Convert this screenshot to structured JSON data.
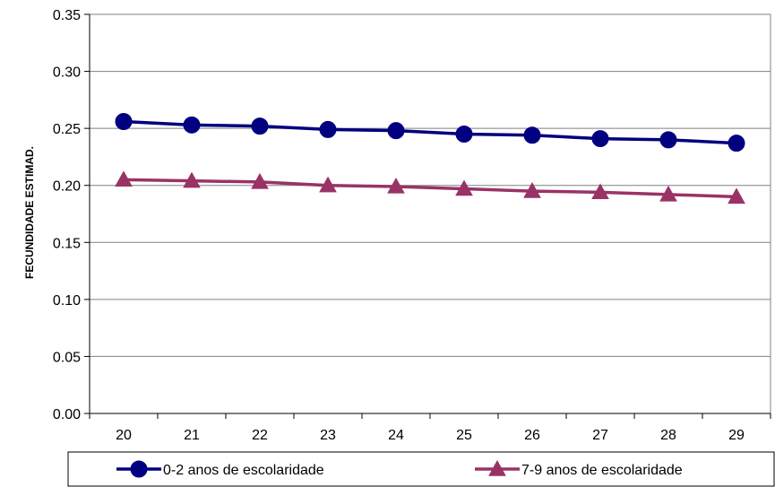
{
  "chart_data": {
    "type": "line",
    "title": "",
    "xlabel": "",
    "ylabel": "FECUNDIDADE ESTIMAD.",
    "x": [
      "20",
      "21",
      "22",
      "23",
      "24",
      "25",
      "26",
      "27",
      "28",
      "29"
    ],
    "ylim": [
      0,
      0.35
    ],
    "yticks": [
      "0.00",
      "0.05",
      "0.10",
      "0.15",
      "0.20",
      "0.25",
      "0.30",
      "0.35"
    ],
    "grid": "horizontal",
    "legend_position": "bottom",
    "series": [
      {
        "name": "0-2 anos de escolaridade",
        "values": [
          0.256,
          0.253,
          0.252,
          0.249,
          0.248,
          0.245,
          0.244,
          0.241,
          0.24,
          0.237
        ],
        "color": "#000080",
        "marker": "circle"
      },
      {
        "name": "7-9 anos de escolaridade",
        "values": [
          0.205,
          0.204,
          0.203,
          0.2,
          0.199,
          0.197,
          0.195,
          0.194,
          0.192,
          0.19
        ],
        "color": "#993366",
        "marker": "triangle"
      }
    ]
  }
}
